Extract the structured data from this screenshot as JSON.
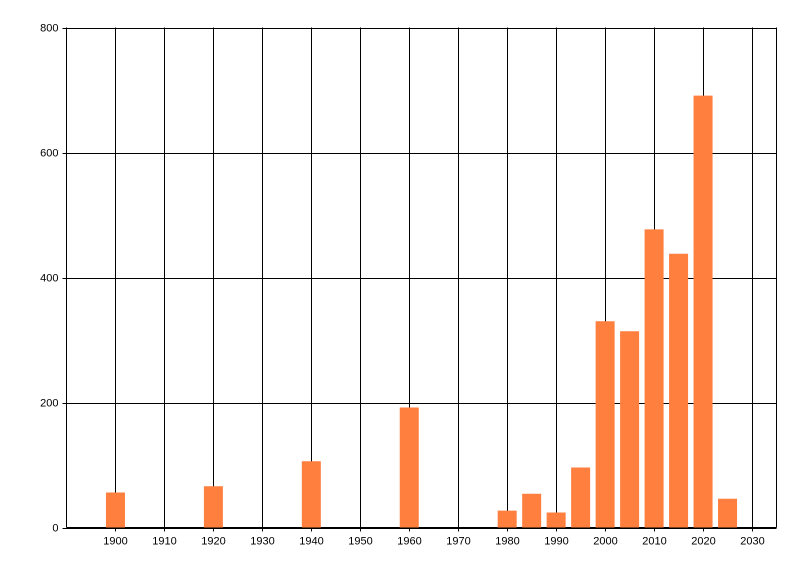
{
  "chart_data": {
    "type": "bar",
    "x": [
      1900,
      1920,
      1940,
      1960,
      1980,
      1985,
      1990,
      1995,
      2000,
      2005,
      2010,
      2015,
      2020,
      2025
    ],
    "values": [
      56,
      66,
      106,
      192,
      27,
      54,
      24,
      96,
      330,
      314,
      477,
      438,
      691,
      46
    ],
    "color": "#ff7f3f",
    "xlim": [
      1890,
      2035
    ],
    "xticks": [
      1900,
      1910,
      1920,
      1930,
      1940,
      1950,
      1960,
      1970,
      1980,
      1990,
      2000,
      2010,
      2020,
      2030
    ],
    "ylim": [
      0,
      800
    ],
    "yticks": [
      0,
      200,
      400,
      600,
      800
    ],
    "grid": true
  }
}
